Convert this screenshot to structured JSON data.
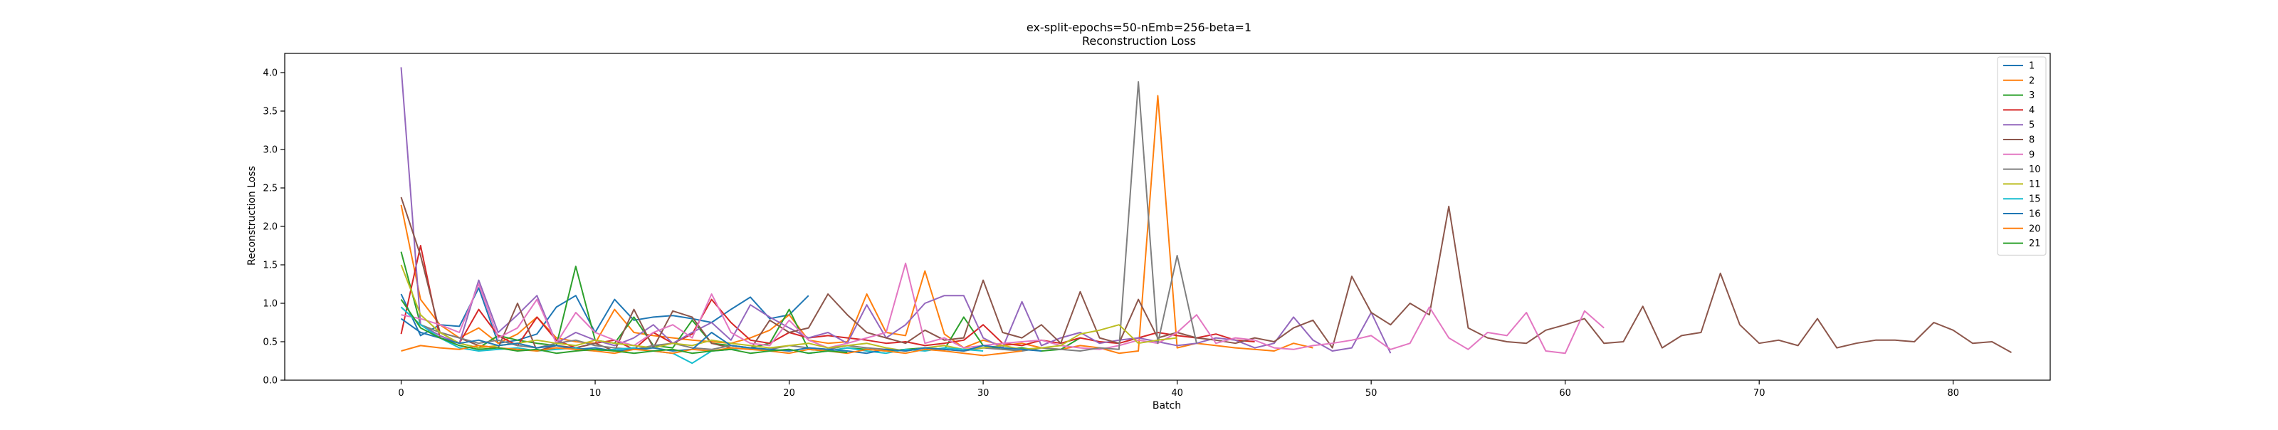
{
  "chart_data": {
    "type": "line",
    "title": "ex-split-epochs=50-nEmb=256-beta=1",
    "subtitle": "Reconstruction Loss",
    "xlabel": "Batch",
    "ylabel": "Reconstruction Loss",
    "xlim": [
      -6,
      85
    ],
    "ylim": [
      0,
      4.25
    ],
    "xticks": [
      0,
      10,
      20,
      30,
      40,
      50,
      60,
      70,
      80
    ],
    "yticks": [
      0.0,
      0.5,
      1.0,
      1.5,
      2.0,
      2.5,
      3.0,
      3.5,
      4.0
    ],
    "grid": false,
    "legend_position": "top-right",
    "series": [
      {
        "name": "1",
        "color": "#1f77b4",
        "values": [
          1.12,
          0.58,
          0.72,
          0.7,
          1.2,
          0.48,
          0.52,
          0.6,
          0.95,
          1.1,
          0.62,
          1.05,
          0.78,
          0.82,
          0.84,
          0.8,
          0.75,
          0.92,
          1.08,
          0.8,
          0.85,
          1.1
        ]
      },
      {
        "name": "2",
        "color": "#ff7f0e",
        "values": [
          2.28,
          1.05,
          0.72,
          0.55,
          0.68,
          0.48,
          0.6,
          0.82,
          0.55,
          0.5,
          0.48,
          0.92,
          0.62,
          0.58,
          0.55,
          0.52,
          0.5,
          0.48,
          0.55,
          0.65,
          0.85,
          0.52,
          0.48,
          0.5,
          1.12,
          0.62,
          0.58,
          1.42,
          0.6,
          0.42,
          0.52,
          0.45,
          0.48,
          0.42,
          0.4,
          0.45,
          0.42,
          0.35,
          0.38,
          3.7,
          0.42,
          0.48,
          0.45,
          0.42,
          0.4,
          0.38,
          0.48,
          0.42
        ]
      },
      {
        "name": "3",
        "color": "#2ca02c",
        "values": [
          1.67,
          0.72,
          0.62,
          0.48,
          0.42,
          0.58,
          0.52,
          0.48,
          0.45,
          1.48,
          0.52,
          0.48,
          0.82,
          0.45,
          0.42,
          0.78,
          0.48,
          0.45,
          0.42,
          0.48,
          0.92,
          0.4,
          0.38,
          0.42,
          0.4,
          0.38,
          0.4,
          0.42,
          0.4,
          0.82,
          0.45,
          0.4,
          0.42,
          0.38,
          0.4,
          0.55
        ]
      },
      {
        "name": "4",
        "color": "#d62728",
        "values": [
          0.6,
          1.75,
          0.55,
          0.48,
          0.92,
          0.58,
          0.45,
          0.82,
          0.52,
          0.42,
          0.48,
          0.52,
          0.4,
          0.62,
          0.48,
          0.6,
          1.05,
          0.75,
          0.52,
          0.48,
          0.62,
          0.55,
          0.58,
          0.55,
          0.52,
          0.48,
          0.5,
          0.45,
          0.48,
          0.52,
          0.72,
          0.48,
          0.45,
          0.52,
          0.48,
          0.55,
          0.5,
          0.48,
          0.55,
          0.62,
          0.58,
          0.55,
          0.6,
          0.52,
          0.5
        ]
      },
      {
        "name": "5",
        "color": "#9467bd",
        "values": [
          4.07,
          0.72,
          0.58,
          0.48,
          1.3,
          0.62,
          0.85,
          1.1,
          0.48,
          0.62,
          0.52,
          0.45,
          0.55,
          0.72,
          0.48,
          0.62,
          0.75,
          0.52,
          0.98,
          0.82,
          0.68,
          0.55,
          0.62,
          0.48,
          0.98,
          0.55,
          0.72,
          1.0,
          1.1,
          1.1,
          0.55,
          0.42,
          1.02,
          0.45,
          0.55,
          0.62,
          0.48,
          0.52,
          0.55,
          0.5,
          0.45,
          0.48,
          0.55,
          0.52,
          0.42,
          0.48,
          0.82,
          0.52,
          0.38,
          0.42,
          0.88,
          0.35
        ]
      },
      {
        "name": "8",
        "color": "#8c564b",
        "values": [
          2.38,
          1.62,
          0.62,
          0.55,
          0.45,
          0.42,
          1.0,
          0.38,
          0.45,
          0.42,
          0.48,
          0.38,
          0.92,
          0.42,
          0.9,
          0.82,
          0.48,
          0.42,
          0.4,
          0.78,
          0.62,
          0.68,
          1.12,
          0.85,
          0.62,
          0.55,
          0.48,
          0.65,
          0.52,
          0.55,
          1.3,
          0.62,
          0.55,
          0.72,
          0.48,
          1.15,
          0.55,
          0.48,
          1.05,
          0.55,
          0.62,
          0.55,
          0.52,
          0.48,
          0.55,
          0.5,
          0.68,
          0.78,
          0.42,
          1.35,
          0.88,
          0.72,
          1.0,
          0.85,
          2.26,
          0.68,
          0.55,
          0.5,
          0.48,
          0.65,
          0.72,
          0.8,
          0.48,
          0.5,
          0.96,
          0.42,
          0.58,
          0.62,
          1.39,
          0.72,
          0.48,
          0.52,
          0.45,
          0.8,
          0.42,
          0.48,
          0.52,
          0.52,
          0.5,
          0.75,
          0.65,
          0.48,
          0.5,
          0.36
        ]
      },
      {
        "name": "9",
        "color": "#e377c2",
        "values": [
          0.85,
          0.8,
          0.72,
          0.62,
          1.25,
          0.55,
          0.68,
          1.05,
          0.48,
          0.88,
          0.62,
          0.52,
          0.45,
          0.62,
          0.72,
          0.55,
          1.12,
          0.62,
          0.48,
          0.45,
          0.78,
          0.52,
          0.42,
          0.48,
          0.55,
          0.62,
          1.52,
          0.48,
          0.55,
          0.42,
          0.45,
          0.48,
          0.5,
          0.52,
          0.45,
          0.42,
          0.4,
          0.45,
          0.52,
          0.48,
          0.62,
          0.85,
          0.48,
          0.55,
          0.52,
          0.42,
          0.4,
          0.45,
          0.48,
          0.52,
          0.58,
          0.4,
          0.48,
          0.95,
          0.55,
          0.4,
          0.62,
          0.58,
          0.88,
          0.38,
          0.35,
          0.9,
          0.68
        ]
      },
      {
        "name": "10",
        "color": "#7f7f7f",
        "values": [
          0.95,
          0.72,
          0.62,
          0.55,
          0.48,
          0.52,
          0.45,
          0.42,
          0.48,
          0.52,
          0.45,
          0.42,
          0.4,
          0.45,
          0.48,
          0.42,
          0.4,
          0.45,
          0.42,
          0.4,
          0.45,
          0.42,
          0.4,
          0.45,
          0.42,
          0.4,
          0.38,
          0.42,
          0.4,
          0.38,
          0.42,
          0.4,
          0.38,
          0.42,
          0.4,
          0.38,
          0.42,
          0.4,
          3.88,
          0.48,
          1.62,
          0.48
        ]
      },
      {
        "name": "11",
        "color": "#bcbd22",
        "values": [
          1.5,
          0.85,
          0.62,
          0.48,
          0.42,
          0.45,
          0.48,
          0.52,
          0.48,
          0.45,
          0.52,
          0.48,
          0.45,
          0.42,
          0.48,
          0.45,
          0.52,
          0.48,
          0.45,
          0.42,
          0.45,
          0.48,
          0.42,
          0.45,
          0.48,
          0.42,
          0.38,
          0.42,
          0.45,
          0.4,
          0.42,
          0.45,
          0.4,
          0.42,
          0.45,
          0.6,
          0.65,
          0.72,
          0.48,
          0.52,
          0.55
        ]
      },
      {
        "name": "15",
        "color": "#17becf",
        "values": [
          0.95,
          0.72,
          0.55,
          0.42,
          0.38,
          0.4,
          0.42,
          0.38,
          0.4,
          0.42,
          0.38,
          0.4,
          0.42,
          0.38,
          0.35,
          0.22,
          0.38,
          0.4,
          0.42,
          0.38,
          0.4,
          0.35,
          0.38,
          0.42,
          0.38,
          0.35,
          0.4,
          0.38,
          0.42,
          0.4,
          0.38
        ]
      },
      {
        "name": "16",
        "color": "#1f77b4",
        "values": [
          0.8,
          0.62,
          0.55,
          0.48,
          0.52,
          0.45,
          0.48,
          0.42,
          0.45,
          0.4,
          0.42,
          0.38,
          0.4,
          0.42,
          0.38,
          0.4,
          0.62,
          0.45,
          0.42,
          0.4,
          0.38,
          0.42,
          0.4,
          0.38,
          0.35,
          0.4,
          0.38,
          0.42,
          0.4,
          0.38,
          0.45,
          0.42,
          0.4,
          0.38
        ]
      },
      {
        "name": "20",
        "color": "#ff7f0e",
        "values": [
          0.38,
          0.45,
          0.42,
          0.4,
          0.45,
          0.42,
          0.4,
          0.38,
          0.42,
          0.4,
          0.38,
          0.35,
          0.4,
          0.38,
          0.35,
          0.4,
          0.38,
          0.42,
          0.4,
          0.38,
          0.35,
          0.4,
          0.38,
          0.35,
          0.4,
          0.38,
          0.35,
          0.4,
          0.38,
          0.35,
          0.32,
          0.35,
          0.38
        ]
      },
      {
        "name": "21",
        "color": "#2ca02c",
        "values": [
          1.05,
          0.68,
          0.55,
          0.45,
          0.4,
          0.42,
          0.38,
          0.4,
          0.35,
          0.38,
          0.4,
          0.38,
          0.35,
          0.38,
          0.4,
          0.35,
          0.38,
          0.4,
          0.35,
          0.38,
          0.4,
          0.35,
          0.38,
          0.36
        ]
      }
    ]
  }
}
